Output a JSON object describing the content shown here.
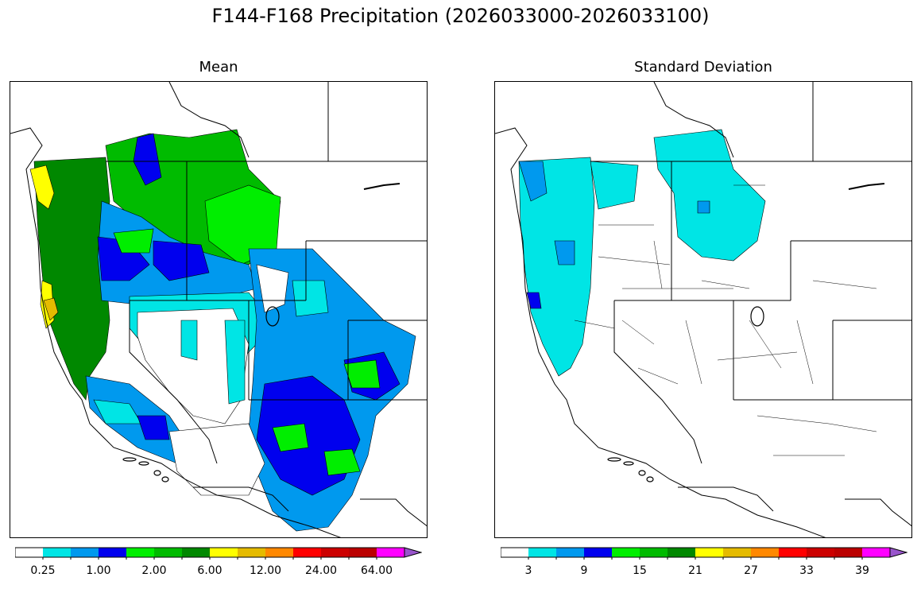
{
  "figure": {
    "title": "F144-F168 Precipitation (2026033000-2026033100)"
  },
  "panels": [
    {
      "id": "mean",
      "title": "Mean",
      "colorbar": {
        "colors": [
          "#ffffff",
          "#00e5e5",
          "#0099ee",
          "#0000ee",
          "#00ee00",
          "#00bb00",
          "#008800",
          "#ffff00",
          "#e5bb00",
          "#ff8800",
          "#ff0000",
          "#cc0000",
          "#bb0000",
          "#ff00ff",
          "#9955cc"
        ],
        "tick_labels": [
          "0.25",
          "1.00",
          "2.00",
          "6.00",
          "12.00",
          "24.00",
          "64.00"
        ],
        "extend": "max"
      }
    },
    {
      "id": "stddev",
      "title": "Standard Deviation",
      "colorbar": {
        "colors": [
          "#ffffff",
          "#00e5e5",
          "#0099ee",
          "#0000ee",
          "#00ee00",
          "#00bb00",
          "#008800",
          "#ffff00",
          "#e5bb00",
          "#ff8800",
          "#ff0000",
          "#cc0000",
          "#bb0000",
          "#ff00ff",
          "#9955cc"
        ],
        "tick_labels": [
          "3",
          "9",
          "15",
          "21",
          "27",
          "33",
          "39"
        ],
        "extend": "max"
      }
    }
  ]
}
